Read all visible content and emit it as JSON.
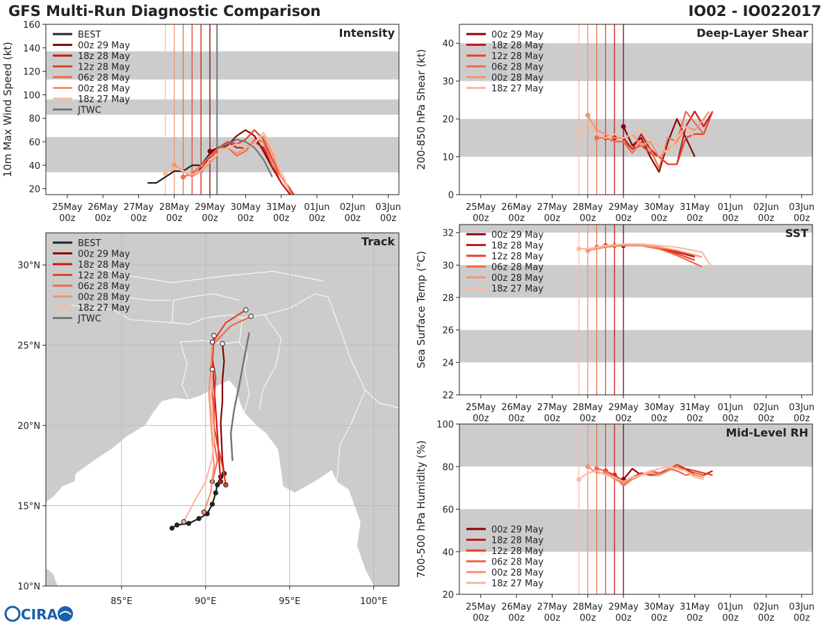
{
  "header": {
    "title": "GFS Multi-Run Diagnostic Comparison",
    "storm_id": "IO02 - IO022017"
  },
  "logo": {
    "text": "CIRA"
  },
  "colors": {
    "BEST": "#222222",
    "00z 29 May": "#8b0000",
    "18z 28 May": "#c81818",
    "12z 28 May": "#e8402a",
    "06z 28 May": "#f26a4a",
    "00z 28 May": "#f79272",
    "18z 27 May": "#fbbba1",
    "JTWC": "#777777",
    "band": "#cccccc"
  },
  "time_ticks": [
    "25May\n00z",
    "26May\n00z",
    "27May\n00z",
    "28May\n00z",
    "29May\n00z",
    "30May\n00z",
    "31May\n00z",
    "01Jun\n00z",
    "02Jun\n00z",
    "03Jun\n00z"
  ],
  "init_times": {
    "18z 27 May": 2.75,
    "00z 28 May": 3.0,
    "06z 28 May": 3.25,
    "12z 28 May": 3.5,
    "18z 28 May": 3.75,
    "00z 29 May": 4.0,
    "JTWC": 4.2
  },
  "chart_data": [
    {
      "id": "intensity",
      "type": "line",
      "title": "Intensity",
      "ylabel": "10m Max Wind Speed (kt)",
      "ylim": [
        15,
        160
      ],
      "yticks": [
        20,
        40,
        60,
        80,
        100,
        120,
        140,
        160
      ],
      "xlim": [
        -0.6,
        9.3
      ],
      "bands": [
        [
          34,
          64
        ],
        [
          83,
          96
        ],
        [
          113,
          137
        ]
      ],
      "legend": [
        "BEST",
        "00z 29 May",
        "18z 28 May",
        "12z 28 May",
        "06z 28 May",
        "00z 28 May",
        "18z 27 May",
        "JTWC"
      ],
      "series": [
        {
          "name": "BEST",
          "x": [
            2.25,
            2.5,
            2.75,
            3.0,
            3.25,
            3.5,
            3.75,
            4.0,
            4.25
          ],
          "y": [
            25,
            25,
            30,
            35,
            35,
            40,
            40,
            50,
            55
          ]
        },
        {
          "name": "00z 29 May",
          "x": [
            4.0,
            4.25,
            4.5,
            4.75,
            5.0,
            5.25,
            5.5,
            5.75,
            6.0,
            6.25
          ],
          "y": [
            52,
            55,
            57,
            65,
            70,
            65,
            52,
            38,
            25,
            15
          ]
        },
        {
          "name": "18z 28 May",
          "x": [
            3.75,
            4.0,
            4.25,
            4.5,
            4.75,
            5.0,
            5.25,
            5.5,
            5.75,
            6.0,
            6.25
          ],
          "y": [
            36,
            48,
            55,
            60,
            55,
            55,
            60,
            55,
            40,
            25,
            15
          ]
        },
        {
          "name": "12z 28 May",
          "x": [
            3.5,
            3.75,
            4.0,
            4.25,
            4.5,
            4.75,
            5.0,
            5.25,
            5.5,
            5.75,
            6.0,
            6.25,
            6.35
          ],
          "y": [
            32,
            36,
            45,
            55,
            60,
            58,
            62,
            70,
            62,
            45,
            30,
            20,
            15
          ]
        },
        {
          "name": "06z 28 May",
          "x": [
            3.25,
            3.5,
            3.75,
            4.0,
            4.25,
            4.5,
            4.75,
            5.0,
            5.25,
            5.5,
            5.75,
            6.0,
            6.3
          ],
          "y": [
            30,
            33,
            40,
            48,
            55,
            55,
            48,
            52,
            62,
            60,
            40,
            30,
            15
          ]
        },
        {
          "name": "00z 28 May",
          "x": [
            3.0,
            3.25,
            3.5,
            3.75,
            4.0,
            4.25,
            4.5,
            4.75,
            5.0,
            5.25,
            5.5,
            5.75,
            6.0,
            6.25
          ],
          "y": [
            40,
            35,
            30,
            35,
            42,
            50,
            55,
            50,
            55,
            60,
            65,
            50,
            30,
            18
          ]
        },
        {
          "name": "18z 27 May",
          "x": [
            2.75,
            3.0,
            3.25,
            3.5,
            3.75,
            4.0,
            4.25,
            4.5,
            4.75,
            5.0,
            5.25,
            5.5,
            5.75,
            6.0,
            6.2
          ],
          "y": [
            33,
            38,
            35,
            32,
            35,
            45,
            50,
            55,
            58,
            55,
            58,
            68,
            55,
            35,
            20
          ]
        },
        {
          "name": "JTWC",
          "x": [
            4.2,
            4.5,
            4.75,
            5.0,
            5.25,
            5.5,
            5.75
          ],
          "y": [
            55,
            58,
            62,
            60,
            55,
            45,
            30
          ]
        }
      ]
    },
    {
      "id": "shear",
      "type": "line",
      "title": "Deep-Layer Shear",
      "ylabel": "200-850 hPa Shear (kt)",
      "ylim": [
        0,
        45
      ],
      "yticks": [
        0,
        10,
        20,
        30,
        40
      ],
      "xlim": [
        -0.6,
        9.3
      ],
      "bands": [
        [
          10,
          20
        ],
        [
          30,
          40
        ]
      ],
      "legend": [
        "00z 29 May",
        "18z 28 May",
        "12z 28 May",
        "06z 28 May",
        "00z 28 May",
        "18z 27 May"
      ],
      "series": [
        {
          "name": "00z 29 May",
          "x": [
            4.0,
            4.25,
            4.5,
            4.75,
            5.0,
            5.25,
            5.5,
            5.75,
            6.0
          ],
          "y": [
            18,
            13,
            15,
            10,
            6,
            14,
            20,
            15,
            10
          ]
        },
        {
          "name": "18z 28 May",
          "x": [
            3.75,
            4.0,
            4.25,
            4.5,
            4.75,
            5.0,
            5.25,
            5.5,
            5.75,
            6.0,
            6.25,
            6.5
          ],
          "y": [
            15,
            15,
            12,
            16,
            12,
            10,
            8,
            8,
            18,
            22,
            18,
            22
          ]
        },
        {
          "name": "12z 28 May",
          "x": [
            3.5,
            3.75,
            4.0,
            4.25,
            4.5,
            4.75,
            5.0,
            5.25,
            5.5,
            5.75,
            6.0,
            6.25,
            6.5
          ],
          "y": [
            15,
            14,
            14,
            12,
            13,
            11,
            10,
            8,
            8,
            15,
            16,
            16,
            22
          ]
        },
        {
          "name": "06z 28 May",
          "x": [
            3.25,
            3.5,
            3.75,
            4.0,
            4.25,
            4.5,
            4.75,
            5.0,
            5.25,
            5.5,
            5.75,
            6.0,
            6.25
          ],
          "y": [
            15,
            15,
            14,
            14,
            11,
            14,
            12,
            7,
            15,
            14,
            22,
            19,
            16
          ]
        },
        {
          "name": "00z 28 May",
          "x": [
            3.0,
            3.25,
            3.5,
            3.75,
            4.0,
            4.25,
            4.5,
            4.75,
            5.0,
            5.25,
            5.5,
            5.75,
            6.0,
            6.25,
            6.4
          ],
          "y": [
            21,
            17,
            16,
            15,
            15,
            16,
            13,
            14,
            10,
            12,
            14,
            18,
            17,
            20,
            22
          ]
        },
        {
          "name": "18z 27 May",
          "x": [
            2.75,
            3.0,
            3.25,
            3.5,
            3.75,
            4.0,
            4.25,
            4.5,
            4.75,
            5.0,
            5.25,
            5.5,
            5.75,
            6.0,
            6.3
          ],
          "y": [
            16,
            19,
            16,
            15,
            16,
            15,
            16,
            18,
            15,
            13,
            11,
            15,
            18,
            15,
            15
          ]
        }
      ]
    },
    {
      "id": "track",
      "type": "scatter",
      "title": "Track",
      "lon_range": [
        80.5,
        101.5
      ],
      "lat_range": [
        10,
        32
      ],
      "lon_ticks": [
        85,
        90,
        95,
        100
      ],
      "lat_ticks": [
        10,
        15,
        20,
        25,
        30
      ],
      "lon_labels": [
        "85°E",
        "90°E",
        "95°E",
        "100°E"
      ],
      "lat_labels": [
        "10°N",
        "15°N",
        "20°N",
        "25°N",
        "30°N"
      ],
      "legend": [
        "BEST",
        "00z 29 May",
        "18z 28 May",
        "12z 28 May",
        "06z 28 May",
        "00z 28 May",
        "18z 27 May",
        "JTWC"
      ],
      "series": [
        {
          "name": "BEST",
          "lon": [
            88.0,
            88.3,
            89.0,
            89.6,
            90.1,
            90.4,
            90.6,
            90.7,
            90.9,
            91.1
          ],
          "lat": [
            13.6,
            13.8,
            13.9,
            14.2,
            14.5,
            15.1,
            15.8,
            16.3,
            16.8,
            17.0
          ]
        },
        {
          "name": "00z 29 May",
          "lon": [
            91.1,
            91.0,
            90.95,
            90.9,
            91.0,
            91.0,
            91.1,
            91.0
          ],
          "lat": [
            17.0,
            17.8,
            19.0,
            20.2,
            21.5,
            22.8,
            24.0,
            25.1
          ]
        },
        {
          "name": "18z 28 May",
          "lon": [
            90.9,
            90.8,
            90.7,
            90.6,
            90.5,
            90.4,
            90.5
          ],
          "lat": [
            16.5,
            17.8,
            19.5,
            21.0,
            22.5,
            24.0,
            25.6
          ]
        },
        {
          "name": "12z 28 May",
          "lon": [
            91.2,
            91.0,
            90.7,
            90.5,
            90.5,
            90.6,
            90.4,
            90.5,
            91.2,
            92.4
          ],
          "lat": [
            16.3,
            17.5,
            18.8,
            20.0,
            21.5,
            23.0,
            24.2,
            25.3,
            26.4,
            27.2
          ]
        },
        {
          "name": "06z 28 May",
          "lon": [
            90.4,
            90.7,
            90.5,
            90.5,
            90.4,
            90.3,
            90.4,
            91.5,
            92.7
          ],
          "lat": [
            16.5,
            17.8,
            19.0,
            20.5,
            22.0,
            23.5,
            25.0,
            26.2,
            26.8
          ]
        },
        {
          "name": "00z 28 May",
          "lon": [
            89.9,
            90.3,
            90.5,
            90.4,
            90.3,
            90.2,
            90.3,
            90.4
          ],
          "lat": [
            14.6,
            15.8,
            17.5,
            19.0,
            20.5,
            22.0,
            23.5,
            25.2
          ]
        },
        {
          "name": "18z 27 May",
          "lon": [
            88.7,
            89.3,
            90.0,
            90.4,
            90.5,
            90.3,
            90.4
          ],
          "lat": [
            14.0,
            15.2,
            16.5,
            18.0,
            19.5,
            21.5,
            23.5
          ]
        },
        {
          "name": "JTWC",
          "lon": [
            91.6,
            91.5,
            91.7,
            92.0,
            92.3,
            92.6
          ],
          "lat": [
            17.8,
            19.5,
            21.0,
            22.5,
            24.2,
            25.8
          ]
        }
      ]
    },
    {
      "id": "sst",
      "type": "line",
      "title": "SST",
      "ylabel": "Sea Surface Temp (°C)",
      "ylim": [
        22,
        32.5
      ],
      "yticks": [
        22,
        24,
        26,
        28,
        30,
        32
      ],
      "xlim": [
        -0.6,
        9.3
      ],
      "bands": [
        [
          24,
          26
        ],
        [
          28,
          30
        ],
        [
          32,
          32.5
        ]
      ],
      "legend": [
        "00z 29 May",
        "18z 28 May",
        "12z 28 May",
        "06z 28 May",
        "00z 28 May",
        "18z 27 May"
      ],
      "series": [
        {
          "name": "00z 29 May",
          "x": [
            4.0,
            4.5,
            5.0,
            5.5,
            6.0
          ],
          "y": [
            31.2,
            31.2,
            31.1,
            30.8,
            30.6
          ]
        },
        {
          "name": "18z 28 May",
          "x": [
            3.75,
            4.0,
            4.5,
            5.0,
            5.5,
            6.0
          ],
          "y": [
            31.2,
            31.2,
            31.2,
            31.1,
            30.8,
            30.5
          ]
        },
        {
          "name": "12z 28 May",
          "x": [
            3.5,
            4.0,
            4.5,
            5.0,
            5.5,
            6.0
          ],
          "y": [
            31.2,
            31.25,
            31.2,
            31.0,
            30.7,
            30.3
          ]
        },
        {
          "name": "06z 28 May",
          "x": [
            3.25,
            3.5,
            4.0,
            4.5,
            5.0,
            5.5,
            6.2
          ],
          "y": [
            31.1,
            31.2,
            31.2,
            31.2,
            31.0,
            30.6,
            29.9
          ]
        },
        {
          "name": "00z 28 May",
          "x": [
            3.0,
            3.5,
            4.0,
            4.5,
            5.0,
            5.5,
            6.2
          ],
          "y": [
            30.9,
            31.1,
            31.2,
            31.2,
            31.1,
            30.9,
            30.5
          ]
        },
        {
          "name": "18z 27 May",
          "x": [
            2.75,
            3.0,
            3.5,
            4.0,
            4.5,
            5.0,
            5.5,
            6.2,
            6.5
          ],
          "y": [
            31.0,
            31.0,
            31.2,
            31.3,
            31.3,
            31.2,
            31.1,
            30.8,
            29.8
          ]
        }
      ]
    },
    {
      "id": "rh",
      "type": "line",
      "title": "Mid-Level RH",
      "ylabel": "700-500 hPa Humidity (%)",
      "ylim": [
        20,
        100
      ],
      "yticks": [
        20,
        40,
        60,
        80,
        100
      ],
      "xlim": [
        -0.6,
        9.3
      ],
      "bands": [
        [
          40,
          60
        ],
        [
          80,
          100
        ]
      ],
      "legend": [
        "00z 29 May",
        "18z 28 May",
        "12z 28 May",
        "06z 28 May",
        "00z 28 May",
        "18z 27 May"
      ],
      "series": [
        {
          "name": "00z 29 May",
          "x": [
            4.0,
            4.25,
            4.5,
            4.75,
            5.0,
            5.25,
            5.5,
            5.75,
            6.0
          ],
          "y": [
            74,
            79,
            76,
            78,
            77,
            78,
            80,
            79,
            76
          ]
        },
        {
          "name": "18z 28 May",
          "x": [
            3.75,
            4.0,
            4.25,
            4.5,
            4.75,
            5.0,
            5.25,
            5.5,
            5.75,
            6.0,
            6.25,
            6.5
          ],
          "y": [
            76,
            73,
            75,
            77,
            76,
            77,
            78,
            80,
            78,
            77,
            76,
            78
          ]
        },
        {
          "name": "12z 28 May",
          "x": [
            3.5,
            3.75,
            4.0,
            4.25,
            4.5,
            4.75,
            5.0,
            5.25,
            5.5,
            5.75,
            6.0,
            6.25,
            6.5
          ],
          "y": [
            78,
            76,
            72,
            75,
            77,
            76,
            76,
            78,
            81,
            79,
            78,
            77,
            76
          ]
        },
        {
          "name": "06z 28 May",
          "x": [
            3.25,
            3.5,
            3.75,
            4.0,
            4.25,
            4.5,
            4.75,
            5.0,
            5.25,
            5.5,
            5.75,
            6.0,
            6.25
          ],
          "y": [
            79,
            78,
            75,
            71,
            74,
            76,
            78,
            77,
            79,
            78,
            76,
            77,
            76
          ]
        },
        {
          "name": "00z 28 May",
          "x": [
            3.0,
            3.25,
            3.5,
            3.75,
            4.0,
            4.25,
            4.5,
            4.75,
            5.0,
            5.25,
            5.5,
            5.75,
            6.0,
            6.25
          ],
          "y": [
            80,
            77,
            77,
            74,
            72,
            74,
            76,
            77,
            76,
            78,
            80,
            78,
            76,
            75
          ]
        },
        {
          "name": "18z 27 May",
          "x": [
            2.75,
            3.0,
            3.25,
            3.5,
            3.75,
            4.0,
            4.25,
            4.5,
            4.75,
            5.0,
            5.25,
            5.5,
            5.75,
            6.0,
            6.25
          ],
          "y": [
            74,
            77,
            78,
            76,
            75,
            73,
            75,
            76,
            78,
            79,
            80,
            79,
            78,
            75,
            74
          ]
        }
      ]
    }
  ]
}
